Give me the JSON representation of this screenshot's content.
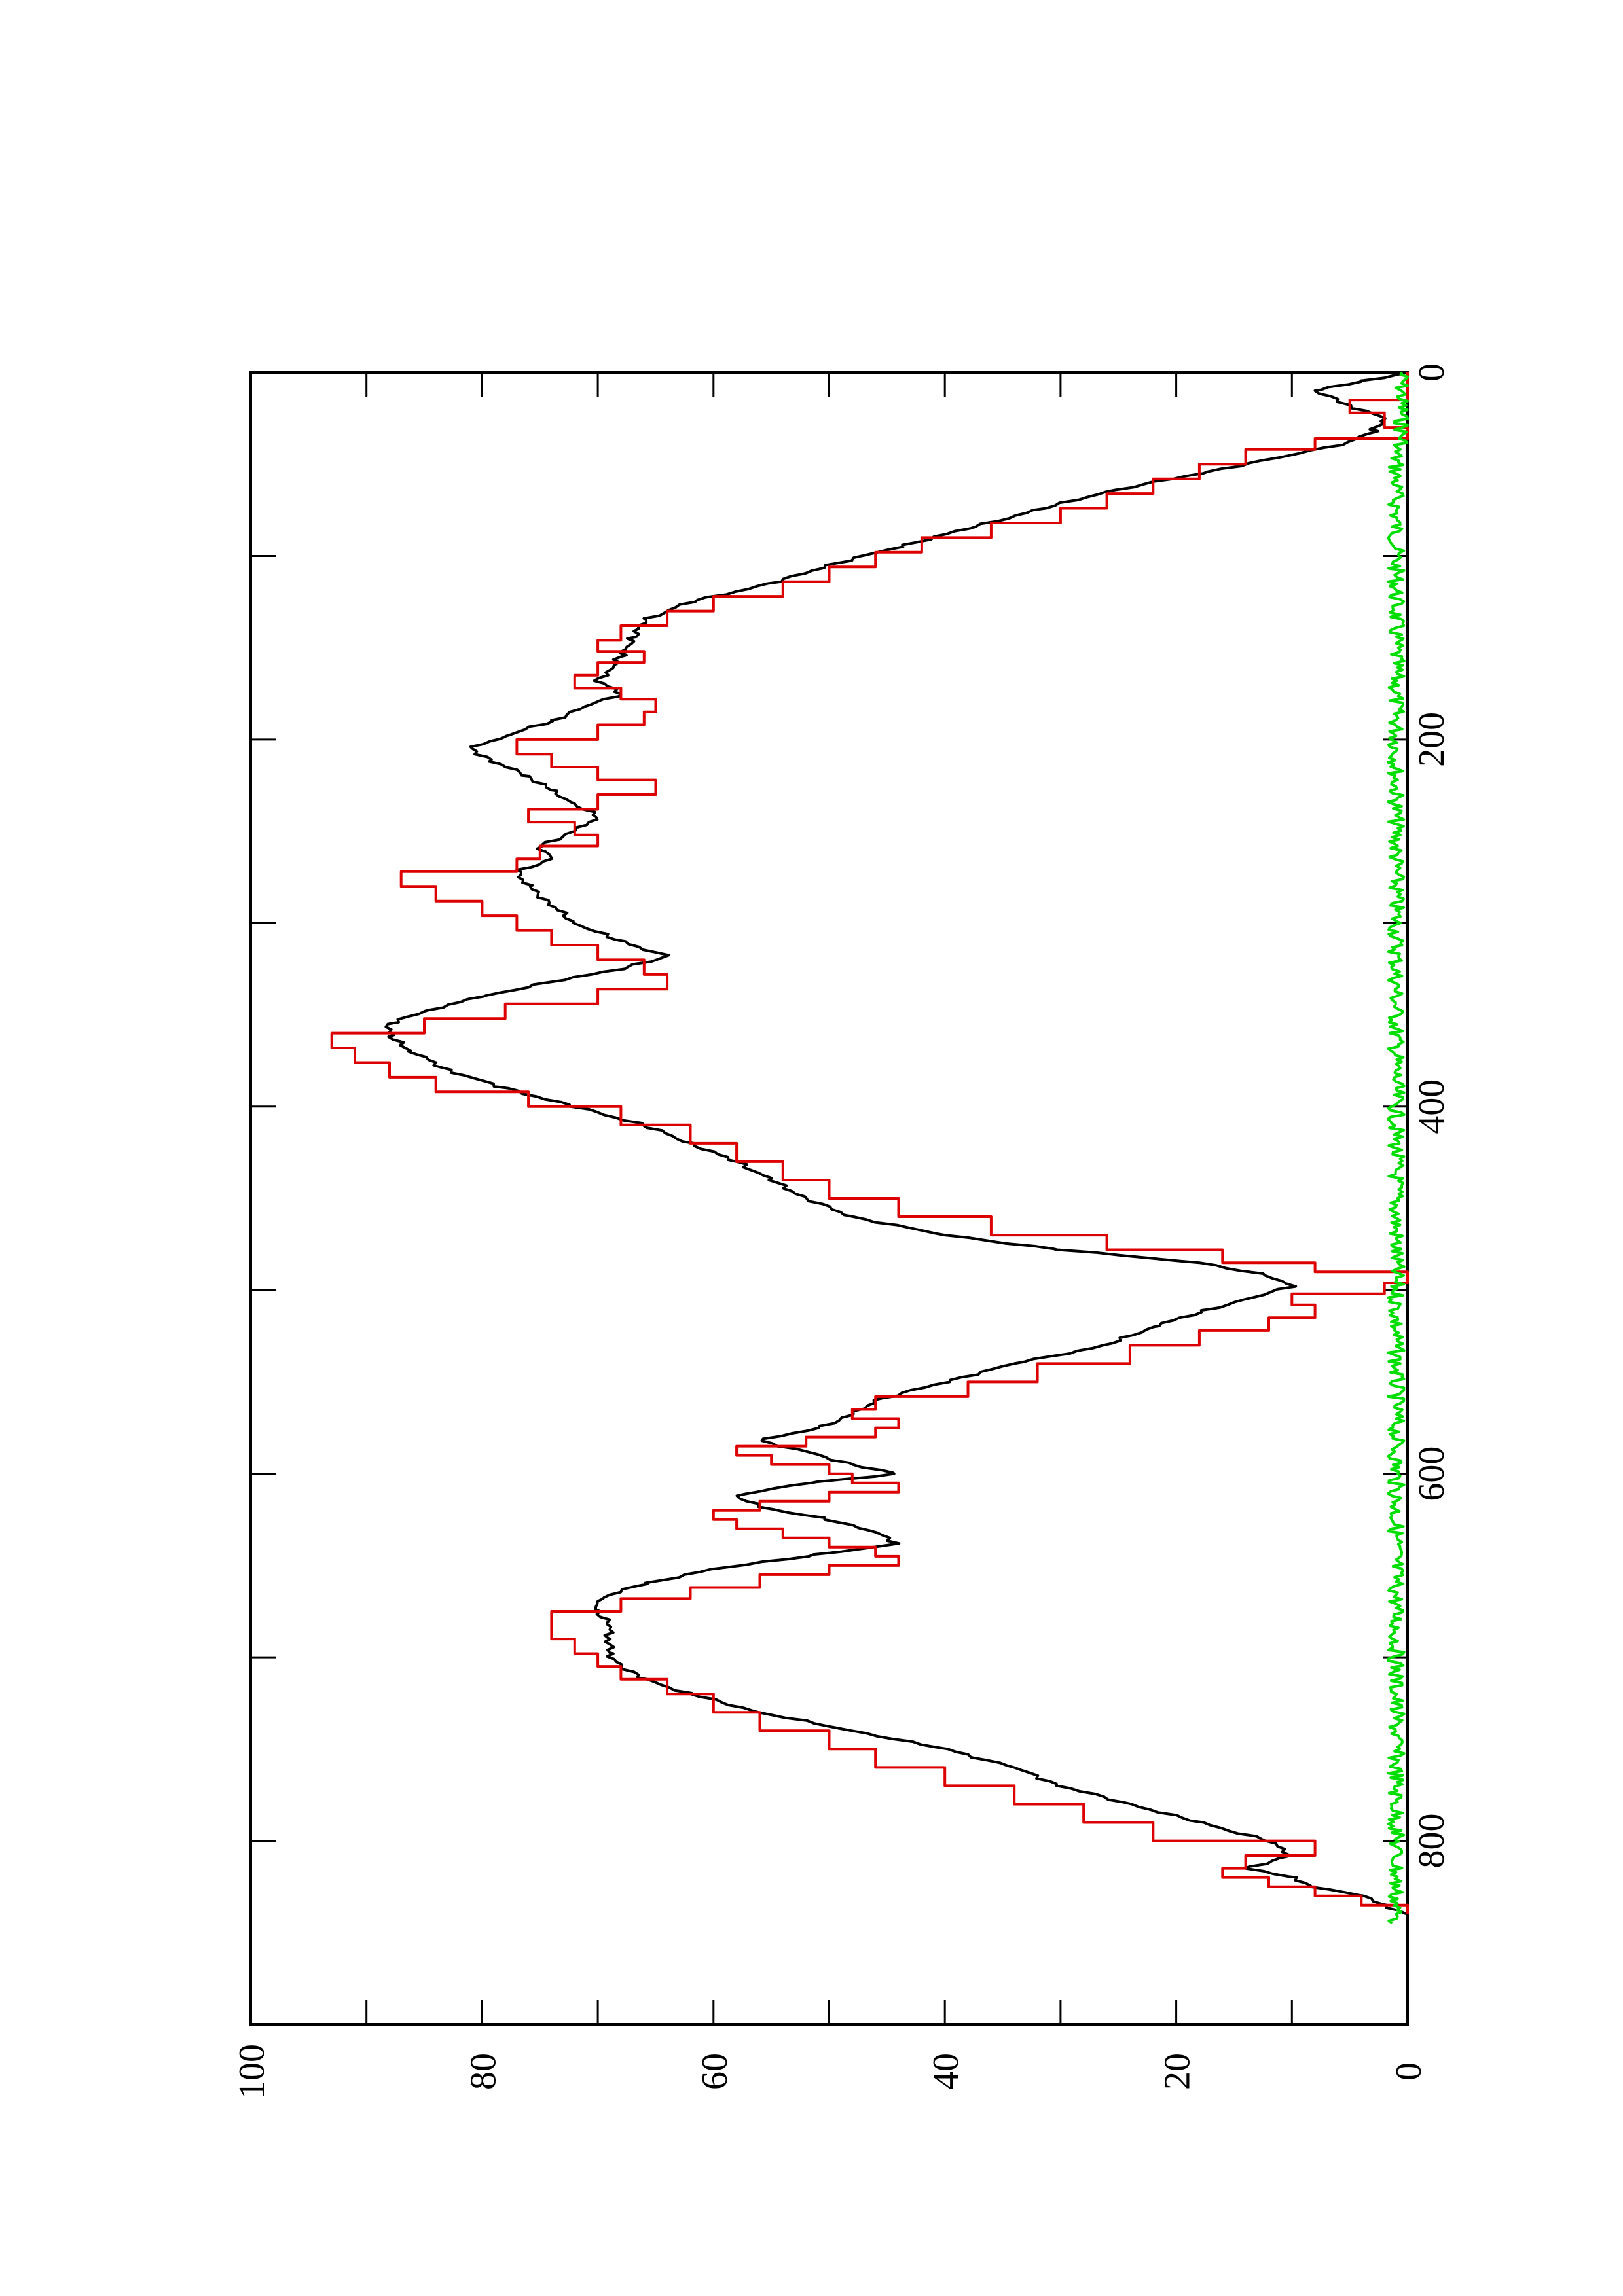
{
  "chart_data": {
    "type": "line",
    "orientation": "rotated-90-ccw",
    "title": "",
    "xlabel": "",
    "ylabel": "",
    "xlim": [
      0,
      900
    ],
    "ylim": [
      0,
      100
    ],
    "x_ticks": [
      0,
      200,
      400,
      600,
      800
    ],
    "y_ticks": [
      0,
      20,
      40,
      60,
      80,
      100
    ],
    "grid": false,
    "legend": "none",
    "series": [
      {
        "color": "#000000",
        "style": "smooth",
        "x": [
          0,
          5,
          10,
          18,
          25,
          32,
          38,
          45,
          55,
          65,
          75,
          85,
          95,
          105,
          115,
          125,
          135,
          145,
          155,
          162,
          168,
          175,
          182,
          190,
          198,
          205,
          212,
          220,
          228,
          235,
          242,
          250,
          258,
          265,
          272,
          280,
          290,
          300,
          310,
          318,
          325,
          332,
          340,
          348,
          355,
          362,
          370,
          380,
          390,
          400,
          410,
          420,
          430,
          440,
          450,
          460,
          470,
          478,
          485,
          492,
          498,
          505,
          512,
          520,
          530,
          540,
          550,
          560,
          568,
          575,
          582,
          588,
          595,
          600,
          605,
          612,
          618,
          625,
          632,
          638,
          645,
          652,
          660,
          668,
          675,
          682,
          690,
          698,
          705,
          712,
          720,
          730,
          740,
          750,
          760,
          770,
          780,
          790,
          800,
          808,
          815,
          820,
          825,
          830,
          835,
          840
        ],
        "y": [
          0,
          4,
          8,
          5,
          2,
          3,
          5,
          10,
          18,
          26,
          32,
          38,
          44,
          50,
          55,
          62,
          66,
          67,
          68,
          69,
          70,
          68,
          71,
          74,
          78,
          81,
          79,
          76,
          74,
          72,
          70,
          72,
          75,
          74,
          77,
          76,
          74,
          72,
          68,
          64,
          68,
          74,
          80,
          85,
          88,
          88,
          86,
          83,
          78,
          72,
          66,
          62,
          58,
          55,
          52,
          48,
          40,
          30,
          18,
          12,
          10,
          14,
          18,
          22,
          26,
          34,
          40,
          46,
          48,
          51,
          56,
          52,
          48,
          44,
          52,
          58,
          56,
          50,
          46,
          44,
          52,
          60,
          66,
          70,
          70,
          69,
          69,
          69,
          68,
          66,
          62,
          56,
          48,
          40,
          34,
          30,
          24,
          18,
          12,
          10,
          14,
          10,
          8,
          4,
          2,
          0
        ]
      },
      {
        "color": "#dd0000",
        "style": "step",
        "x": [
          0,
          8,
          15,
          22,
          30,
          36,
          42,
          50,
          58,
          66,
          74,
          82,
          90,
          98,
          106,
          114,
          122,
          130,
          138,
          146,
          152,
          158,
          165,
          172,
          178,
          185,
          192,
          200,
          208,
          215,
          222,
          230,
          238,
          245,
          252,
          258,
          265,
          272,
          280,
          288,
          296,
          304,
          312,
          320,
          328,
          336,
          344,
          352,
          360,
          368,
          376,
          384,
          392,
          400,
          410,
          420,
          430,
          440,
          450,
          460,
          470,
          478,
          485,
          490,
          496,
          502,
          508,
          515,
          522,
          530,
          540,
          550,
          558,
          565,
          570,
          575,
          580,
          585,
          590,
          595,
          600,
          605,
          610,
          615,
          620,
          625,
          630,
          635,
          640,
          645,
          650,
          655,
          662,
          668,
          675,
          682,
          690,
          698,
          705,
          712,
          720,
          730,
          740,
          750,
          760,
          770,
          780,
          790,
          800,
          808,
          815,
          820,
          825,
          830,
          835,
          840
        ],
        "y": [
          0,
          0,
          5,
          2,
          0,
          8,
          14,
          18,
          22,
          26,
          30,
          36,
          42,
          46,
          50,
          54,
          60,
          64,
          68,
          70,
          66,
          70,
          72,
          68,
          65,
          66,
          70,
          77,
          74,
          70,
          65,
          70,
          76,
          72,
          70,
          75,
          77,
          87,
          84,
          80,
          77,
          74,
          70,
          66,
          64,
          70,
          78,
          85,
          93,
          91,
          88,
          84,
          76,
          68,
          62,
          58,
          54,
          50,
          44,
          36,
          26,
          16,
          8,
          0,
          2,
          10,
          8,
          12,
          18,
          24,
          32,
          38,
          46,
          48,
          44,
          46,
          52,
          58,
          55,
          50,
          48,
          44,
          50,
          56,
          60,
          58,
          54,
          50,
          46,
          44,
          50,
          56,
          62,
          68,
          74,
          74,
          72,
          70,
          68,
          64,
          60,
          56,
          50,
          46,
          40,
          34,
          28,
          22,
          8,
          14,
          16,
          12,
          8,
          4,
          0,
          0
        ]
      },
      {
        "color": "#00dd00",
        "style": "noisy",
        "x": [
          0,
          40,
          900
        ],
        "y": [
          0.5,
          1,
          1
        ]
      }
    ]
  }
}
